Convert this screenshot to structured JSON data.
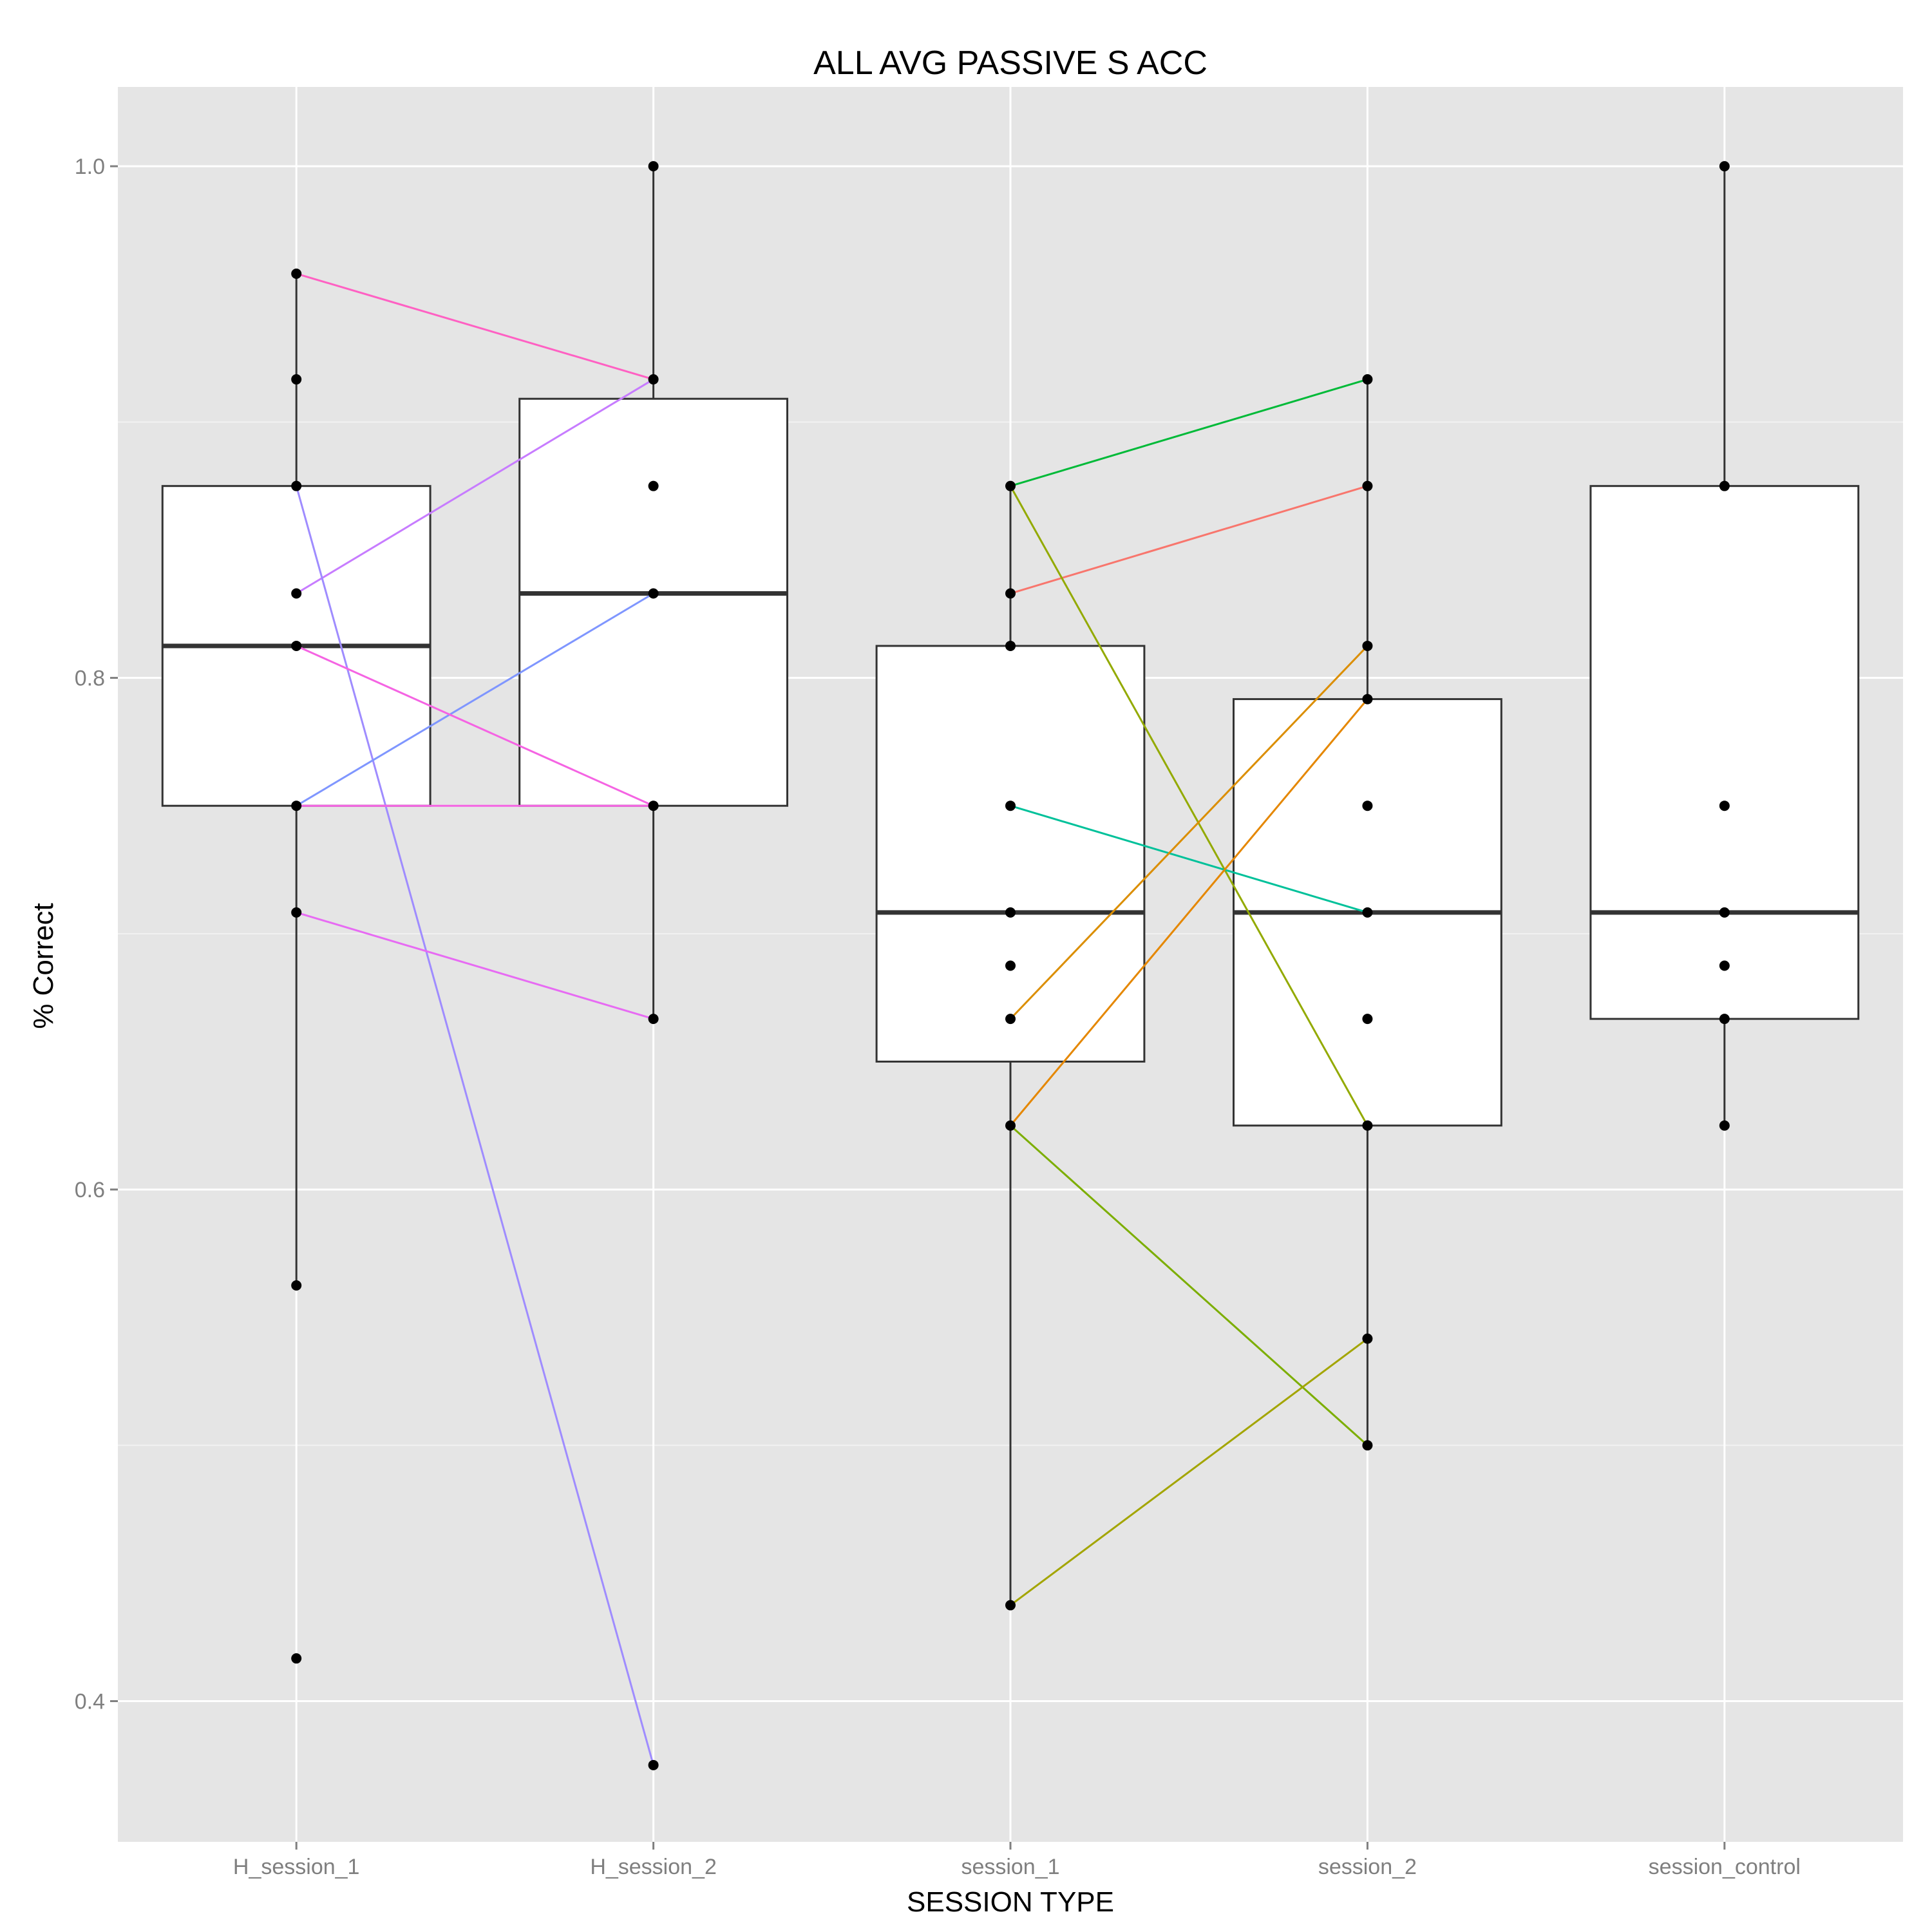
{
  "chart_data": {
    "type": "box",
    "title": "ALL AVG PASSIVE S ACC",
    "xlabel": "SESSION TYPE",
    "ylabel": "% Correct",
    "categories": [
      "H_session_1",
      "H_session_2",
      "session_1",
      "session_2",
      "session_control"
    ],
    "ylim": [
      0.345,
      1.031
    ],
    "yticks": [
      0.4,
      0.6,
      0.8,
      1.0
    ],
    "ytick_labels": [
      "0.4",
      "0.6",
      "0.8",
      "1.0"
    ],
    "grid": true,
    "boxes": [
      {
        "category": "H_session_1",
        "q1": 0.75,
        "median": 0.8125,
        "q3": 0.875,
        "whisker_low": 0.562,
        "whisker_high": 0.958
      },
      {
        "category": "H_session_2",
        "q1": 0.75,
        "median": 0.833,
        "q3": 0.9091,
        "whisker_low": 0.667,
        "whisker_high": 1.0
      },
      {
        "category": "session_1",
        "q1": 0.65,
        "median": 0.7083,
        "q3": 0.8125,
        "whisker_low": 0.4375,
        "whisker_high": 0.875
      },
      {
        "category": "session_2",
        "q1": 0.625,
        "median": 0.7083,
        "q3": 0.7917,
        "whisker_low": 0.5,
        "whisker_high": 0.9167
      },
      {
        "category": "session_control",
        "q1": 0.6667,
        "median": 0.7083,
        "q3": 0.875,
        "whisker_low": 0.625,
        "whisker_high": 1.0
      }
    ],
    "points": [
      {
        "category": "H_session_1",
        "values": [
          0.958,
          0.9167,
          0.875,
          0.833,
          0.8125,
          0.75,
          0.7083,
          0.5625,
          0.4167
        ]
      },
      {
        "category": "H_session_2",
        "values": [
          1.0,
          0.9167,
          0.875,
          0.833,
          0.75,
          0.6667,
          0.375
        ]
      },
      {
        "category": "session_1",
        "values": [
          0.875,
          0.833,
          0.8125,
          0.75,
          0.7083,
          0.6875,
          0.6667,
          0.625,
          0.4375
        ]
      },
      {
        "category": "session_2",
        "values": [
          0.9167,
          0.875,
          0.8125,
          0.7917,
          0.75,
          0.7083,
          0.6667,
          0.625,
          0.5417,
          0.5
        ]
      },
      {
        "category": "session_control",
        "values": [
          1.0,
          0.875,
          0.75,
          0.7083,
          0.6875,
          0.6667,
          0.625
        ]
      }
    ],
    "paired_lines": [
      {
        "from": "H_session_1",
        "to": "H_session_2",
        "y1": 0.958,
        "y2": 0.9167,
        "color": "#ff61c3"
      },
      {
        "from": "H_session_1",
        "to": "H_session_2",
        "y1": 0.833,
        "y2": 0.9167,
        "color": "#c77cff"
      },
      {
        "from": "H_session_1",
        "to": "H_session_2",
        "y1": 0.875,
        "y2": 0.375,
        "color": "#9f8cff"
      },
      {
        "from": "H_session_1",
        "to": "H_session_2",
        "y1": 0.75,
        "y2": 0.833,
        "color": "#7f96ff"
      },
      {
        "from": "H_session_1",
        "to": "H_session_2",
        "y1": 0.8125,
        "y2": 0.75,
        "color": "#f564e3"
      },
      {
        "from": "H_session_1",
        "to": "H_session_2",
        "y1": 0.75,
        "y2": 0.75,
        "color": "#f564e3"
      },
      {
        "from": "H_session_1",
        "to": "H_session_2",
        "y1": 0.7083,
        "y2": 0.6667,
        "color": "#e76bf3"
      },
      {
        "from": "session_1",
        "to": "session_2",
        "y1": 0.875,
        "y2": 0.9167,
        "color": "#00ba38"
      },
      {
        "from": "session_1",
        "to": "session_2",
        "y1": 0.833,
        "y2": 0.875,
        "color": "#f8766d"
      },
      {
        "from": "session_1",
        "to": "session_2",
        "y1": 0.875,
        "y2": 0.625,
        "color": "#93aa00"
      },
      {
        "from": "session_1",
        "to": "session_2",
        "y1": 0.75,
        "y2": 0.7083,
        "color": "#00c19a"
      },
      {
        "from": "session_1",
        "to": "session_2",
        "y1": 0.6667,
        "y2": 0.8125,
        "color": "#db8e00"
      },
      {
        "from": "session_1",
        "to": "session_2",
        "y1": 0.625,
        "y2": 0.7917,
        "color": "#e58700"
      },
      {
        "from": "session_1",
        "to": "session_2",
        "y1": 0.625,
        "y2": 0.5,
        "color": "#7cae00"
      },
      {
        "from": "session_1",
        "to": "session_2",
        "y1": 0.4375,
        "y2": 0.5417,
        "color": "#a3a500"
      }
    ]
  },
  "colors": {
    "panel_background": "#e5e5e5",
    "grid_major": "#ffffff",
    "grid_minor": "#f2f2f2",
    "box_fill": "#ffffff",
    "box_stroke": "#333333",
    "point": "#000000"
  }
}
